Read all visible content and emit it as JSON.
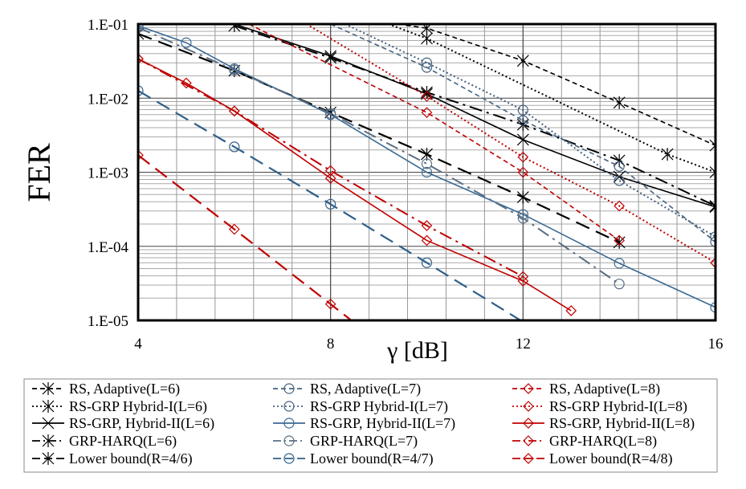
{
  "chart_data": {
    "type": "line",
    "title": "",
    "xlabel": "γ [dB]",
    "ylabel": "FER",
    "xlim": [
      4,
      16
    ],
    "ylim": [
      1e-05,
      0.1
    ],
    "y_scale": "log",
    "grid": true,
    "legend_position": "bottom",
    "x_ticks": [
      "4",
      "8",
      "12",
      "16"
    ],
    "y_ticks": [
      "1.E-05",
      "1.E-04",
      "1.E-03",
      "1.E-02",
      "1.E-01"
    ],
    "series": [
      {
        "name": "RS, Adaptive(L=6)",
        "color": "#000000",
        "style": "dash",
        "marker": "asterisk",
        "x": [
          9.4,
          10,
          12,
          14,
          16
        ],
        "y": [
          0.1,
          0.088,
          0.032,
          0.0087,
          0.0023
        ]
      },
      {
        "name": "RS-GRP Hybrid-I(L=6)",
        "color": "#000000",
        "style": "dot",
        "marker": "asterisk",
        "x": [
          9.2,
          10,
          15,
          16
        ],
        "y": [
          0.1,
          0.064,
          0.00175,
          0.001
        ]
      },
      {
        "name": "RS-GRP, Hybrid-II(L=6)",
        "color": "#000000",
        "style": "solid",
        "marker": "x",
        "x": [
          6,
          8,
          10,
          12,
          14,
          16
        ],
        "y": [
          0.1,
          0.037,
          0.0114,
          0.00275,
          0.00087,
          0.00034
        ]
      },
      {
        "name": "GRP-HARQ(L=6)",
        "color": "#000000",
        "style": "dashdot",
        "marker": "asterisk",
        "x": [
          6,
          8,
          10,
          12,
          14,
          16
        ],
        "y": [
          0.095,
          0.035,
          0.012,
          0.0044,
          0.00144,
          0.00035
        ]
      },
      {
        "name": "Lower bound(R=4/6)",
        "color": "#000000",
        "style": "longdash",
        "marker": "asterisk",
        "x": [
          4,
          6,
          8,
          10,
          12,
          14
        ],
        "y": [
          0.074,
          0.0235,
          0.0064,
          0.00175,
          0.00046,
          0.000113
        ]
      },
      {
        "name": "RS, Adaptive(L=7)",
        "color": "#44617F",
        "style": "dash",
        "marker": "circle",
        "x": [
          8.0,
          10,
          12,
          14,
          16
        ],
        "y": [
          0.1,
          0.026,
          0.005,
          0.0012,
          0.000115
        ]
      },
      {
        "name": "RS-GRP Hybrid-I(L=7)",
        "color": "#44617F",
        "style": "dot",
        "marker": "circle",
        "x": [
          8.3,
          10,
          12,
          14,
          16
        ],
        "y": [
          0.1,
          0.03,
          0.0069,
          0.00077,
          0.000135
        ]
      },
      {
        "name": "RS-GRP, Hybrid-II(L=7)",
        "color": "#3A6A93",
        "style": "solid",
        "marker": "circle",
        "x": [
          4,
          5,
          6,
          8,
          10,
          12,
          14,
          16
        ],
        "y": [
          0.095,
          0.056,
          0.025,
          0.006,
          0.001,
          0.00027,
          5.9e-05,
          1.5e-05
        ]
      },
      {
        "name": "GRP-HARQ(L=7)",
        "color": "#5A6E85",
        "style": "dashdot",
        "marker": "circle",
        "x": [
          4,
          6,
          8,
          10,
          12,
          14
        ],
        "y": [
          0.09,
          0.024,
          0.0062,
          0.0013,
          0.00024,
          3.1e-05
        ]
      },
      {
        "name": "Lower bound(R=4/7)",
        "color": "#2F5F8A",
        "style": "longdash",
        "marker": "circle",
        "x": [
          4,
          6,
          8,
          10,
          11.95
        ],
        "y": [
          0.0126,
          0.0022,
          0.00037,
          6e-05,
          1e-05
        ]
      },
      {
        "name": "RS, Adaptive(L=8)",
        "color": "#C00000",
        "style": "dash",
        "marker": "diamond",
        "x": [
          6.3,
          10,
          12,
          14
        ],
        "y": [
          0.1,
          0.0064,
          0.001,
          0.00012
        ]
      },
      {
        "name": "RS-GRP Hybrid-I(L=8)",
        "color": "#C00000",
        "style": "dot",
        "marker": "diamond",
        "x": [
          7.5,
          10,
          12,
          14,
          16
        ],
        "y": [
          0.1,
          0.0106,
          0.0016,
          0.00035,
          6e-05
        ]
      },
      {
        "name": "RS-GRP, Hybrid-II(L=8)",
        "color": "#C00000",
        "style": "solid",
        "marker": "diamond",
        "x": [
          4,
          5,
          6,
          8,
          10,
          12,
          13
        ],
        "y": [
          0.034,
          0.016,
          0.0067,
          0.00083,
          0.00012,
          3.4e-05,
          1.35e-05
        ]
      },
      {
        "name": "GRP-HARQ(L=8)",
        "color": "#C00000",
        "style": "dashdot",
        "marker": "diamond",
        "x": [
          4,
          6,
          8,
          10,
          12
        ],
        "y": [
          0.034,
          0.0067,
          0.00105,
          0.00019,
          3.9e-05
        ]
      },
      {
        "name": "Lower bound(R=4/8)",
        "color": "#C00000",
        "style": "longdash",
        "marker": "diamond",
        "x": [
          4,
          6,
          8,
          8.43
        ],
        "y": [
          0.0017,
          0.00017,
          1.66e-05,
          1e-05
        ]
      }
    ]
  }
}
